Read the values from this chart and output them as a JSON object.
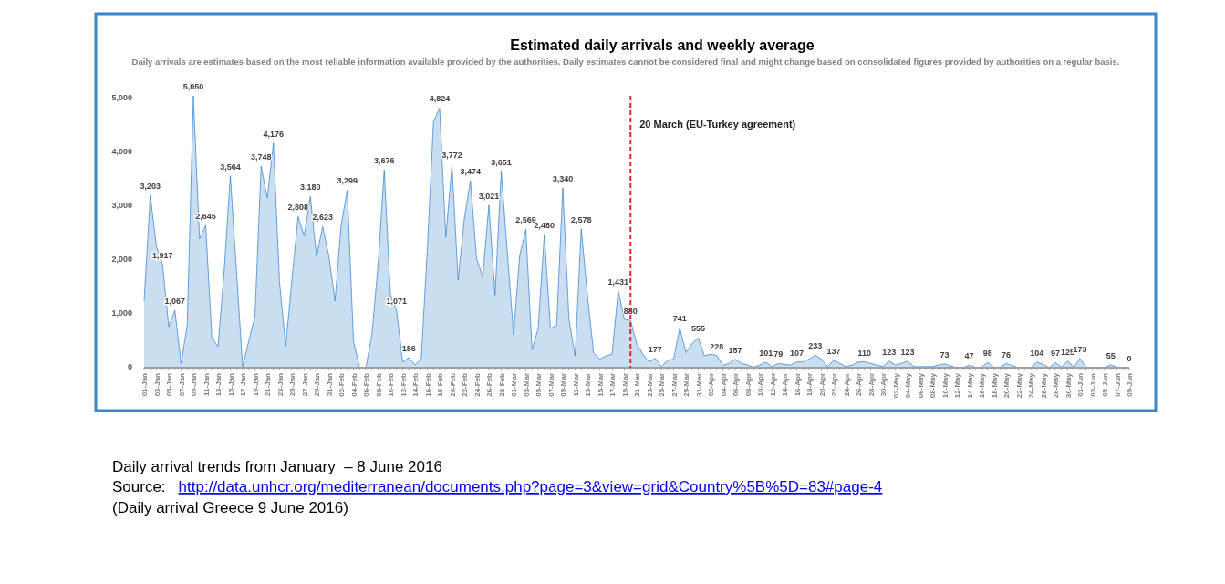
{
  "chart_data": {
    "type": "area",
    "title": "Estimated daily arrivals and weekly average",
    "subtitle": "Daily arrivals are estimates based on the most reliable information available provided by the authorities. Daily estimates cannot be considered final and might change based on consolidated figures provided by authorities on a regular basis.",
    "x": [
      "2016-01-01",
      "2016-01-02",
      "2016-01-03",
      "2016-01-04",
      "2016-01-05",
      "2016-01-06",
      "2016-01-07",
      "2016-01-08",
      "2016-01-09",
      "2016-01-10",
      "2016-01-11",
      "2016-01-12",
      "2016-01-13",
      "2016-01-14",
      "2016-01-15",
      "2016-01-16",
      "2016-01-17",
      "2016-01-18",
      "2016-01-19",
      "2016-01-20",
      "2016-01-21",
      "2016-01-22",
      "2016-01-23",
      "2016-01-24",
      "2016-01-25",
      "2016-01-26",
      "2016-01-27",
      "2016-01-28",
      "2016-01-29",
      "2016-01-30",
      "2016-01-31",
      "2016-02-01",
      "2016-02-02",
      "2016-02-03",
      "2016-02-04",
      "2016-02-05",
      "2016-02-06",
      "2016-02-07",
      "2016-02-08",
      "2016-02-09",
      "2016-02-10",
      "2016-02-11",
      "2016-02-12",
      "2016-02-13",
      "2016-02-14",
      "2016-02-15",
      "2016-02-16",
      "2016-02-17",
      "2016-02-18",
      "2016-02-19",
      "2016-02-20",
      "2016-02-21",
      "2016-02-22",
      "2016-02-23",
      "2016-02-24",
      "2016-02-25",
      "2016-02-26",
      "2016-02-27",
      "2016-02-28",
      "2016-02-29",
      "2016-03-01",
      "2016-03-02",
      "2016-03-03",
      "2016-03-04",
      "2016-03-05",
      "2016-03-06",
      "2016-03-07",
      "2016-03-08",
      "2016-03-09",
      "2016-03-10",
      "2016-03-11",
      "2016-03-12",
      "2016-03-13",
      "2016-03-14",
      "2016-03-15",
      "2016-03-16",
      "2016-03-17",
      "2016-03-18",
      "2016-03-19",
      "2016-03-20",
      "2016-03-21",
      "2016-03-22",
      "2016-03-23",
      "2016-03-24",
      "2016-03-25",
      "2016-03-26",
      "2016-03-27",
      "2016-03-28",
      "2016-03-29",
      "2016-03-30",
      "2016-03-31",
      "2016-04-01",
      "2016-04-02",
      "2016-04-03",
      "2016-04-04",
      "2016-04-05",
      "2016-04-06",
      "2016-04-07",
      "2016-04-08",
      "2016-04-09",
      "2016-04-10",
      "2016-04-11",
      "2016-04-12",
      "2016-04-13",
      "2016-04-14",
      "2016-04-15",
      "2016-04-16",
      "2016-04-17",
      "2016-04-18",
      "2016-04-19",
      "2016-04-20",
      "2016-04-21",
      "2016-04-22",
      "2016-04-23",
      "2016-04-24",
      "2016-04-25",
      "2016-04-26",
      "2016-04-27",
      "2016-04-28",
      "2016-04-29",
      "2016-04-30",
      "2016-05-01",
      "2016-05-02",
      "2016-05-03",
      "2016-05-04",
      "2016-05-05",
      "2016-05-06",
      "2016-05-07",
      "2016-05-08",
      "2016-05-09",
      "2016-05-10",
      "2016-05-11",
      "2016-05-12",
      "2016-05-13",
      "2016-05-14",
      "2016-05-15",
      "2016-05-16",
      "2016-05-17",
      "2016-05-18",
      "2016-05-19",
      "2016-05-20",
      "2016-05-21",
      "2016-05-22",
      "2016-05-23",
      "2016-05-24",
      "2016-05-25",
      "2016-05-26",
      "2016-05-27",
      "2016-05-28",
      "2016-05-29",
      "2016-05-30",
      "2016-05-31",
      "2016-06-01",
      "2016-06-02",
      "2016-06-03",
      "2016-06-04",
      "2016-06-05",
      "2016-06-06",
      "2016-06-07",
      "2016-06-08",
      "2016-06-09"
    ],
    "xlim": [
      "2016-01-01",
      "2016-06-09"
    ],
    "xticks": [
      {
        "value": "2016-01-01",
        "label": "01-Jan"
      },
      {
        "value": "2016-01-03",
        "label": "03-Jan"
      },
      {
        "value": "2016-01-05",
        "label": "05-Jan"
      },
      {
        "value": "2016-01-07",
        "label": "07-Jan"
      },
      {
        "value": "2016-01-09",
        "label": "09-Jan"
      },
      {
        "value": "2016-01-11",
        "label": "11-Jan"
      },
      {
        "value": "2016-01-13",
        "label": "13-Jan"
      },
      {
        "value": "2016-01-15",
        "label": "15-Jan"
      },
      {
        "value": "2016-01-17",
        "label": "17-Jan"
      },
      {
        "value": "2016-01-19",
        "label": "19-Jan"
      },
      {
        "value": "2016-01-21",
        "label": "21-Jan"
      },
      {
        "value": "2016-01-23",
        "label": "23-Jan"
      },
      {
        "value": "2016-01-25",
        "label": "25-Jan"
      },
      {
        "value": "2016-01-27",
        "label": "27-Jan"
      },
      {
        "value": "2016-01-29",
        "label": "29-Jan"
      },
      {
        "value": "2016-01-31",
        "label": "31-Jan"
      },
      {
        "value": "2016-02-02",
        "label": "02-Feb"
      },
      {
        "value": "2016-02-04",
        "label": "04-Feb"
      },
      {
        "value": "2016-02-06",
        "label": "06-Feb"
      },
      {
        "value": "2016-02-08",
        "label": "08-Feb"
      },
      {
        "value": "2016-02-10",
        "label": "10-Feb"
      },
      {
        "value": "2016-02-12",
        "label": "12-Feb"
      },
      {
        "value": "2016-02-14",
        "label": "14-Feb"
      },
      {
        "value": "2016-02-16",
        "label": "16-Feb"
      },
      {
        "value": "2016-02-18",
        "label": "18-Feb"
      },
      {
        "value": "2016-02-20",
        "label": "20-Feb"
      },
      {
        "value": "2016-02-22",
        "label": "22-Feb"
      },
      {
        "value": "2016-02-24",
        "label": "24-Feb"
      },
      {
        "value": "2016-02-26",
        "label": "26-Feb"
      },
      {
        "value": "2016-02-28",
        "label": "28-Feb"
      },
      {
        "value": "2016-03-01",
        "label": "01-Mar"
      },
      {
        "value": "2016-03-03",
        "label": "03-Mar"
      },
      {
        "value": "2016-03-05",
        "label": "05-Mar"
      },
      {
        "value": "2016-03-07",
        "label": "07-Mar"
      },
      {
        "value": "2016-03-09",
        "label": "09-Mar"
      },
      {
        "value": "2016-03-11",
        "label": "11-Mar"
      },
      {
        "value": "2016-03-13",
        "label": "13-Mar"
      },
      {
        "value": "2016-03-15",
        "label": "15-Mar"
      },
      {
        "value": "2016-03-17",
        "label": "17-Mar"
      },
      {
        "value": "2016-03-19",
        "label": "19-Mar"
      },
      {
        "value": "2016-03-21",
        "label": "21-Mar"
      },
      {
        "value": "2016-03-23",
        "label": "23-Mar"
      },
      {
        "value": "2016-03-25",
        "label": "25-Mar"
      },
      {
        "value": "2016-03-27",
        "label": "27-Mar"
      },
      {
        "value": "2016-03-29",
        "label": "29-Mar"
      },
      {
        "value": "2016-03-31",
        "label": "31-Mar"
      },
      {
        "value": "2016-04-02",
        "label": "02-Apr"
      },
      {
        "value": "2016-04-04",
        "label": "04-Apr"
      },
      {
        "value": "2016-04-06",
        "label": "06-Apr"
      },
      {
        "value": "2016-04-08",
        "label": "08-Apr"
      },
      {
        "value": "2016-04-10",
        "label": "10-Apr"
      },
      {
        "value": "2016-04-12",
        "label": "12-Apr"
      },
      {
        "value": "2016-04-14",
        "label": "14-Apr"
      },
      {
        "value": "2016-04-16",
        "label": "16-Apr"
      },
      {
        "value": "2016-04-18",
        "label": "18-Apr"
      },
      {
        "value": "2016-04-20",
        "label": "20-Apr"
      },
      {
        "value": "2016-04-22",
        "label": "22-Apr"
      },
      {
        "value": "2016-04-24",
        "label": "24-Apr"
      },
      {
        "value": "2016-04-26",
        "label": "26-Apr"
      },
      {
        "value": "2016-04-28",
        "label": "28-Apr"
      },
      {
        "value": "2016-04-30",
        "label": "30-Apr"
      },
      {
        "value": "2016-05-02",
        "label": "02-May"
      },
      {
        "value": "2016-05-04",
        "label": "04-May"
      },
      {
        "value": "2016-05-06",
        "label": "06-May"
      },
      {
        "value": "2016-05-08",
        "label": "08-May"
      },
      {
        "value": "2016-05-10",
        "label": "10-May"
      },
      {
        "value": "2016-05-12",
        "label": "12-May"
      },
      {
        "value": "2016-05-14",
        "label": "14-May"
      },
      {
        "value": "2016-05-16",
        "label": "16-May"
      },
      {
        "value": "2016-05-18",
        "label": "18-May"
      },
      {
        "value": "2016-05-20",
        "label": "20-May"
      },
      {
        "value": "2016-05-22",
        "label": "22-May"
      },
      {
        "value": "2016-05-24",
        "label": "24-May"
      },
      {
        "value": "2016-05-26",
        "label": "26-May"
      },
      {
        "value": "2016-05-28",
        "label": "28-May"
      },
      {
        "value": "2016-05-30",
        "label": "30-May"
      },
      {
        "value": "2016-06-01",
        "label": "01-Jun"
      },
      {
        "value": "2016-06-03",
        "label": "03-Jun"
      },
      {
        "value": "2016-06-05",
        "label": "05-Jun"
      },
      {
        "value": "2016-06-07",
        "label": "07-Jun"
      },
      {
        "value": "2016-06-09",
        "label": "09-Jun"
      }
    ],
    "ylim": [
      0,
      5050
    ],
    "yticks": [
      0,
      {
        "value": 1000,
        "label": "1,000"
      },
      {
        "value": 2000,
        "label": "2,000"
      },
      {
        "value": 3000,
        "label": "3,000"
      },
      {
        "value": 4000,
        "label": "4,000"
      },
      {
        "value": 5000,
        "label": "5,000"
      }
    ],
    "series": [
      {
        "color": "#2a7bc8",
        "values": [
          1240,
          3203,
          2250,
          1917,
          760,
          1067,
          80,
          785,
          5050,
          2400,
          2645,
          560,
          390,
          1800,
          3564,
          1800,
          20,
          500,
          950,
          3748,
          3150,
          4176,
          1580,
          400,
          1630,
          2808,
          2450,
          3180,
          2060,
          2623,
          2080,
          1240,
          2650,
          3299,
          500,
          0,
          0,
          615,
          1915,
          3676,
          1350,
          1071,
          107,
          186,
          50,
          160,
          2200,
          4570,
          4824,
          2420,
          3772,
          1630,
          2760,
          3474,
          2030,
          1690,
          3021,
          1350,
          3651,
          2140,
          615,
          2085,
          2569,
          330,
          730,
          2480,
          730,
          785,
          3340,
          900,
          220,
          2578,
          1350,
          277,
          160,
          220,
          250,
          1431,
          900,
          880,
          450,
          250,
          107,
          177,
          20,
          135,
          160,
          741,
          277,
          450,
          555,
          220,
          250,
          228,
          40,
          80,
          157,
          80,
          50,
          10,
          50,
          101,
          20,
          79,
          60,
          50,
          107,
          107,
          160,
          233,
          160,
          20,
          137,
          80,
          20,
          50,
          107,
          110,
          80,
          50,
          20,
          123,
          50,
          80,
          123,
          20,
          20,
          20,
          20,
          50,
          73,
          30,
          0,
          0,
          47,
          10,
          10,
          98,
          10,
          10,
          76,
          40,
          0,
          0,
          0,
          104,
          60,
          0,
          97,
          10,
          125,
          10,
          173,
          10,
          5,
          0,
          0,
          55,
          10,
          0,
          0
        ],
        "value_labels": [
          null,
          "3,203",
          null,
          "1,917",
          null,
          "1,067",
          null,
          null,
          "5,050",
          null,
          "2,645",
          null,
          null,
          null,
          "3,564",
          null,
          null,
          null,
          null,
          "3,748",
          null,
          "4,176",
          null,
          null,
          null,
          "2,808",
          null,
          "3,180",
          null,
          "2,623",
          null,
          null,
          null,
          "3,299",
          null,
          null,
          null,
          null,
          null,
          "3,676",
          null,
          "1,071",
          null,
          "186",
          null,
          null,
          null,
          null,
          "4,824",
          null,
          "3,772",
          null,
          null,
          "3,474",
          null,
          null,
          "3,021",
          null,
          "3,651",
          null,
          null,
          null,
          "2,569",
          null,
          null,
          "2,480",
          null,
          null,
          "3,340",
          null,
          null,
          "2,578",
          null,
          null,
          null,
          null,
          null,
          "1,431",
          null,
          "880",
          null,
          null,
          null,
          "177",
          null,
          null,
          null,
          "741",
          null,
          null,
          "555",
          null,
          null,
          "228",
          null,
          null,
          "157",
          null,
          null,
          null,
          null,
          "101",
          null,
          "79",
          null,
          null,
          "107",
          null,
          null,
          "233",
          null,
          null,
          "137",
          null,
          null,
          null,
          null,
          "110",
          null,
          null,
          null,
          "123",
          null,
          null,
          "123",
          null,
          null,
          null,
          null,
          null,
          "73",
          null,
          null,
          null,
          "47",
          null,
          null,
          "98",
          null,
          null,
          "76",
          null,
          null,
          null,
          null,
          "104",
          null,
          null,
          "97",
          null,
          "125",
          null,
          "173",
          null,
          null,
          null,
          null,
          "55",
          null,
          null,
          "0"
        ]
      }
    ],
    "ref_lines": [
      {
        "axis": "x",
        "value": "2016-03-20",
        "label": "20 March (EU-Turkey agreement)",
        "color": "#e8262a",
        "line_style": "dashed"
      }
    ],
    "annotations": [
      "Daily arrival trends from January  – 8 June 2016",
      "Source:",
      "http://data.unhcr.org/mediterranean/documents.php?page=3&view=grid&Country%5B%5D=83#page-4",
      "(Daily arrival Greece 9 June 2016)"
    ]
  }
}
